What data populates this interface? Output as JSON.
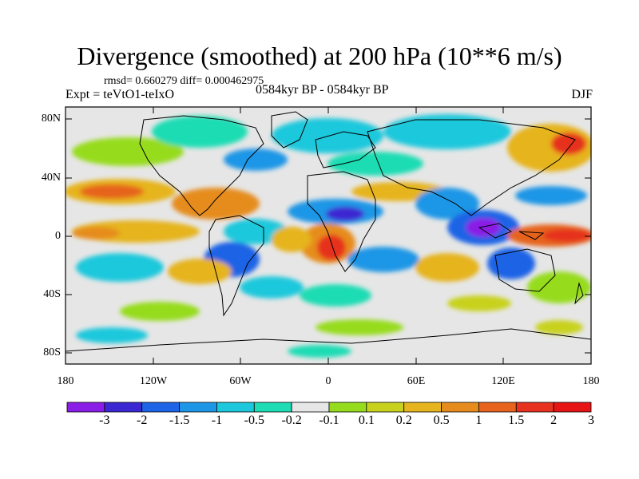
{
  "title": "Divergence (smoothed) at 200 hPa (10**6 m/s)",
  "stats": "rmsd= 0.660279 diff= 0.000462975",
  "experiment": "Expt = teVtO1-teIxO",
  "period": "0584kyr BP - 0584kyr BP",
  "season": "DJF",
  "lat_labels": [
    "80N",
    "40N",
    "0",
    "40S",
    "80S"
  ],
  "lon_labels": [
    "180",
    "120W",
    "60W",
    "0",
    "60E",
    "120E",
    "180"
  ],
  "colorbar": {
    "colors": [
      "#8a1ee6",
      "#3c28d2",
      "#1e64e6",
      "#1e96e6",
      "#1ec8dc",
      "#1edcb4",
      "#e6e6e6",
      "#96dc1e",
      "#c8d21e",
      "#e6b41e",
      "#e68c1e",
      "#e6641e",
      "#e6321e",
      "#e61414"
    ],
    "labels": [
      "-3",
      "-2",
      "-1.5",
      "-1",
      "-0.5",
      "-0.2",
      "-0.1",
      "0.1",
      "0.2",
      "0.5",
      "1",
      "1.5",
      "2",
      "3"
    ]
  }
}
